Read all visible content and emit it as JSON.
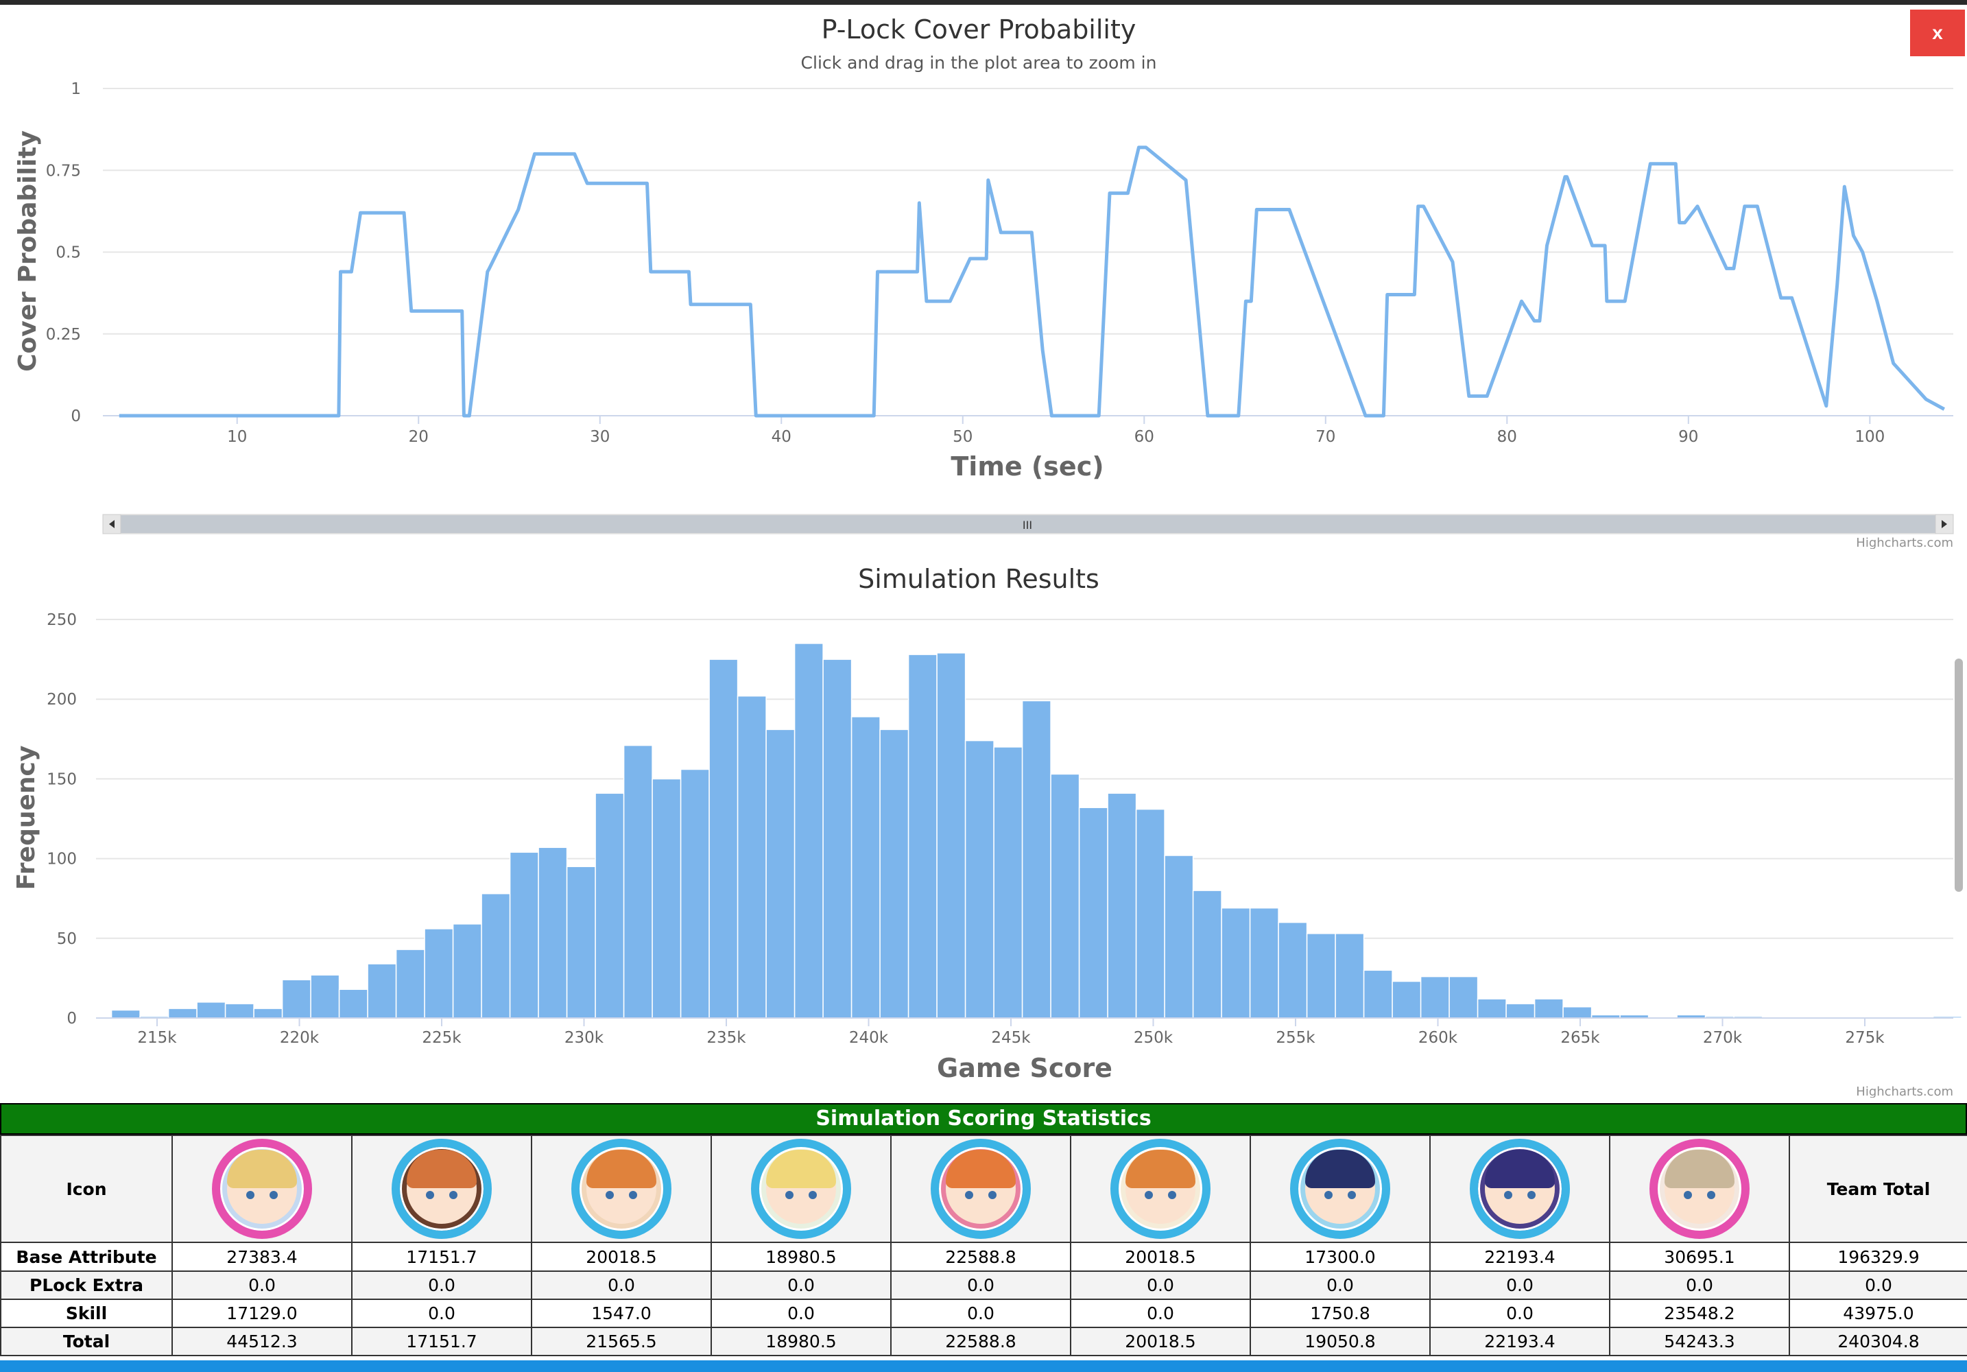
{
  "close_label": "x",
  "charts": {
    "cover": {
      "title": "P-Lock Cover Probability",
      "subtitle": "Click and drag in the plot area to zoom in",
      "credit": "Highcharts.com",
      "scrollbar_grip": "III"
    },
    "hist": {
      "credit": "Highcharts.com"
    }
  },
  "chart_data": [
    {
      "type": "line",
      "title": "P-Lock Cover Probability",
      "subtitle": "Click and drag in the plot area to zoom in",
      "xlabel": "Time (sec)",
      "ylabel": "Cover Probability",
      "xlim": [
        2.6,
        104.6
      ],
      "ylim": [
        0,
        1
      ],
      "x_ticks": [
        10,
        20,
        30,
        40,
        50,
        60,
        70,
        80,
        90,
        100
      ],
      "y_ticks": [
        0,
        0.25,
        0.5,
        0.75,
        1
      ],
      "y_tick_labels": [
        "0",
        "0.25",
        "0.5",
        "0.75",
        "1"
      ],
      "grid": true,
      "color": "#7cb5ec",
      "series": [
        {
          "x": [
            3.5,
            15.6,
            15.7,
            16.3,
            16.8,
            19.2,
            19.6,
            22.4,
            22.5,
            22.8,
            23.8,
            23.9,
            24.7,
            25.5,
            26.4,
            28.6,
            29.3,
            32.6,
            32.8,
            34.9,
            35.0,
            38.3,
            38.6,
            45.1,
            45.3,
            46.3,
            47.5,
            47.6,
            48.0,
            49.3,
            50.4,
            51.3,
            51.4,
            52.1,
            53.8,
            54.4,
            54.9,
            57.5,
            58.1,
            59.1,
            59.7,
            60.1,
            62.3,
            63.5,
            65.2,
            65.6,
            65.9,
            66.2,
            68.0,
            72.2,
            73.2,
            73.4,
            74.9,
            75.1,
            75.4,
            77.0,
            77.9,
            78.9,
            80.8,
            81.5,
            81.8,
            82.2,
            83.2,
            83.3,
            84.7,
            85.4,
            85.5,
            86.5,
            87.9,
            89.3,
            89.5,
            89.8,
            90.5,
            92.1,
            92.5,
            93.1,
            93.8,
            95.1,
            95.7,
            97.6,
            98.2,
            98.6,
            99.1,
            99.6,
            100.4,
            101.3,
            103.1,
            104.1
          ],
          "y": [
            0,
            0,
            0.44,
            0.44,
            0.62,
            0.62,
            0.32,
            0.32,
            0,
            0,
            0.44,
            0.45,
            0.54,
            0.63,
            0.8,
            0.8,
            0.71,
            0.71,
            0.44,
            0.44,
            0.34,
            0.34,
            0.0,
            0.0,
            0.44,
            0.44,
            0.44,
            0.65,
            0.35,
            0.35,
            0.48,
            0.48,
            0.72,
            0.56,
            0.56,
            0.2,
            0,
            0,
            0.68,
            0.68,
            0.82,
            0.82,
            0.72,
            0,
            0,
            0.35,
            0.35,
            0.63,
            0.63,
            0,
            0,
            0.37,
            0.37,
            0.64,
            0.64,
            0.47,
            0.06,
            0.06,
            0.35,
            0.29,
            0.29,
            0.52,
            0.73,
            0.73,
            0.52,
            0.52,
            0.35,
            0.35,
            0.77,
            0.77,
            0.59,
            0.59,
            0.64,
            0.45,
            0.45,
            0.64,
            0.64,
            0.36,
            0.36,
            0.03,
            0.4,
            0.7,
            0.55,
            0.5,
            0.35,
            0.16,
            0.05,
            0.02
          ]
        }
      ]
    },
    {
      "type": "bar",
      "title": "Simulation Results",
      "xlabel": "Game Score",
      "ylabel": "Frequency",
      "ylim": [
        0,
        250
      ],
      "y_ticks": [
        0,
        50,
        100,
        150,
        200,
        250
      ],
      "x_ticks": [
        "215k",
        "220k",
        "225k",
        "230k",
        "235k",
        "240k",
        "245k",
        "250k",
        "255k",
        "260k",
        "265k",
        "270k",
        "275k"
      ],
      "grid": true,
      "color": "#7cb5ec",
      "bin_width": 1000,
      "bin_starts": [
        213400,
        214400,
        215400,
        216400,
        217400,
        218400,
        219400,
        220400,
        221400,
        222400,
        223400,
        224400,
        225400,
        226400,
        227400,
        228400,
        229400,
        230400,
        231400,
        232400,
        233400,
        234400,
        235400,
        236400,
        237400,
        238400,
        239400,
        240400,
        241400,
        242400,
        243400,
        244400,
        245400,
        246400,
        247400,
        248400,
        249400,
        250400,
        251400,
        252400,
        253400,
        254400,
        255400,
        256400,
        257400,
        258400,
        259400,
        260400,
        261400,
        262400,
        263400,
        264400,
        265400,
        266400,
        267400,
        268400,
        269400,
        270400,
        271400,
        272400,
        273400,
        274400,
        275400,
        276400,
        277400
      ],
      "values": [
        5,
        1,
        6,
        10,
        9,
        6,
        24,
        27,
        18,
        34,
        43,
        56,
        59,
        78,
        104,
        107,
        95,
        141,
        171,
        150,
        156,
        225,
        202,
        181,
        235,
        225,
        189,
        181,
        228,
        229,
        174,
        170,
        199,
        153,
        132,
        141,
        131,
        102,
        80,
        69,
        69,
        60,
        53,
        53,
        30,
        23,
        26,
        26,
        12,
        9,
        12,
        7,
        2,
        2,
        0,
        2,
        1,
        1,
        0,
        0,
        0,
        0,
        0,
        0,
        1
      ]
    }
  ],
  "stats": {
    "title": "Simulation Scoring Statistics",
    "header_icon": "Icon",
    "header_total": "Team Total",
    "members": [
      {
        "name": "member-1",
        "ring": "#e64fae",
        "hair": "#e9c977",
        "skin": "#fbe2cf",
        "bg": "#c4d9f1"
      },
      {
        "name": "member-2",
        "ring": "#3cb4e5",
        "hair": "#d4743c",
        "skin": "#fbe2cf",
        "bg": "#6a3f2c"
      },
      {
        "name": "member-3",
        "ring": "#3cb4e5",
        "hair": "#e0823c",
        "skin": "#fbe2cf",
        "bg": "#f1d6ba"
      },
      {
        "name": "member-4",
        "ring": "#3cb4e5",
        "hair": "#f0d77a",
        "skin": "#fbe2cf",
        "bg": "#e8f0e0"
      },
      {
        "name": "member-5",
        "ring": "#3cb4e5",
        "hair": "#e57a3a",
        "skin": "#fbe2cf",
        "bg": "#e880a0"
      },
      {
        "name": "member-6",
        "ring": "#3cb4e5",
        "hair": "#e0843c",
        "skin": "#fbe2cf",
        "bg": "#f5ecd8"
      },
      {
        "name": "member-7",
        "ring": "#3cb4e5",
        "hair": "#27316a",
        "skin": "#fbe2cf",
        "bg": "#9bd5ee"
      },
      {
        "name": "member-8",
        "ring": "#3cb4e5",
        "hair": "#34307a",
        "skin": "#fbe2cf",
        "bg": "#4c3f8a"
      },
      {
        "name": "member-9",
        "ring": "#e64fae",
        "hair": "#c9b79a",
        "skin": "#fbe2cf",
        "bg": "#f3e7df"
      }
    ],
    "rows": [
      {
        "label": "Base Attribute",
        "values": [
          "27383.4",
          "17151.7",
          "20018.5",
          "18980.5",
          "22588.8",
          "20018.5",
          "17300.0",
          "22193.4",
          "30695.1"
        ],
        "total": "196329.9"
      },
      {
        "label": "PLock Extra",
        "values": [
          "0.0",
          "0.0",
          "0.0",
          "0.0",
          "0.0",
          "0.0",
          "0.0",
          "0.0",
          "0.0"
        ],
        "total": "0.0"
      },
      {
        "label": "Skill",
        "values": [
          "17129.0",
          "0.0",
          "1547.0",
          "0.0",
          "0.0",
          "0.0",
          "1750.8",
          "0.0",
          "23548.2"
        ],
        "total": "43975.0"
      },
      {
        "label": "Total",
        "values": [
          "44512.3",
          "17151.7",
          "21565.5",
          "18980.5",
          "22588.8",
          "20018.5",
          "19050.8",
          "22193.4",
          "54243.3"
        ],
        "total": "240304.8"
      }
    ]
  }
}
